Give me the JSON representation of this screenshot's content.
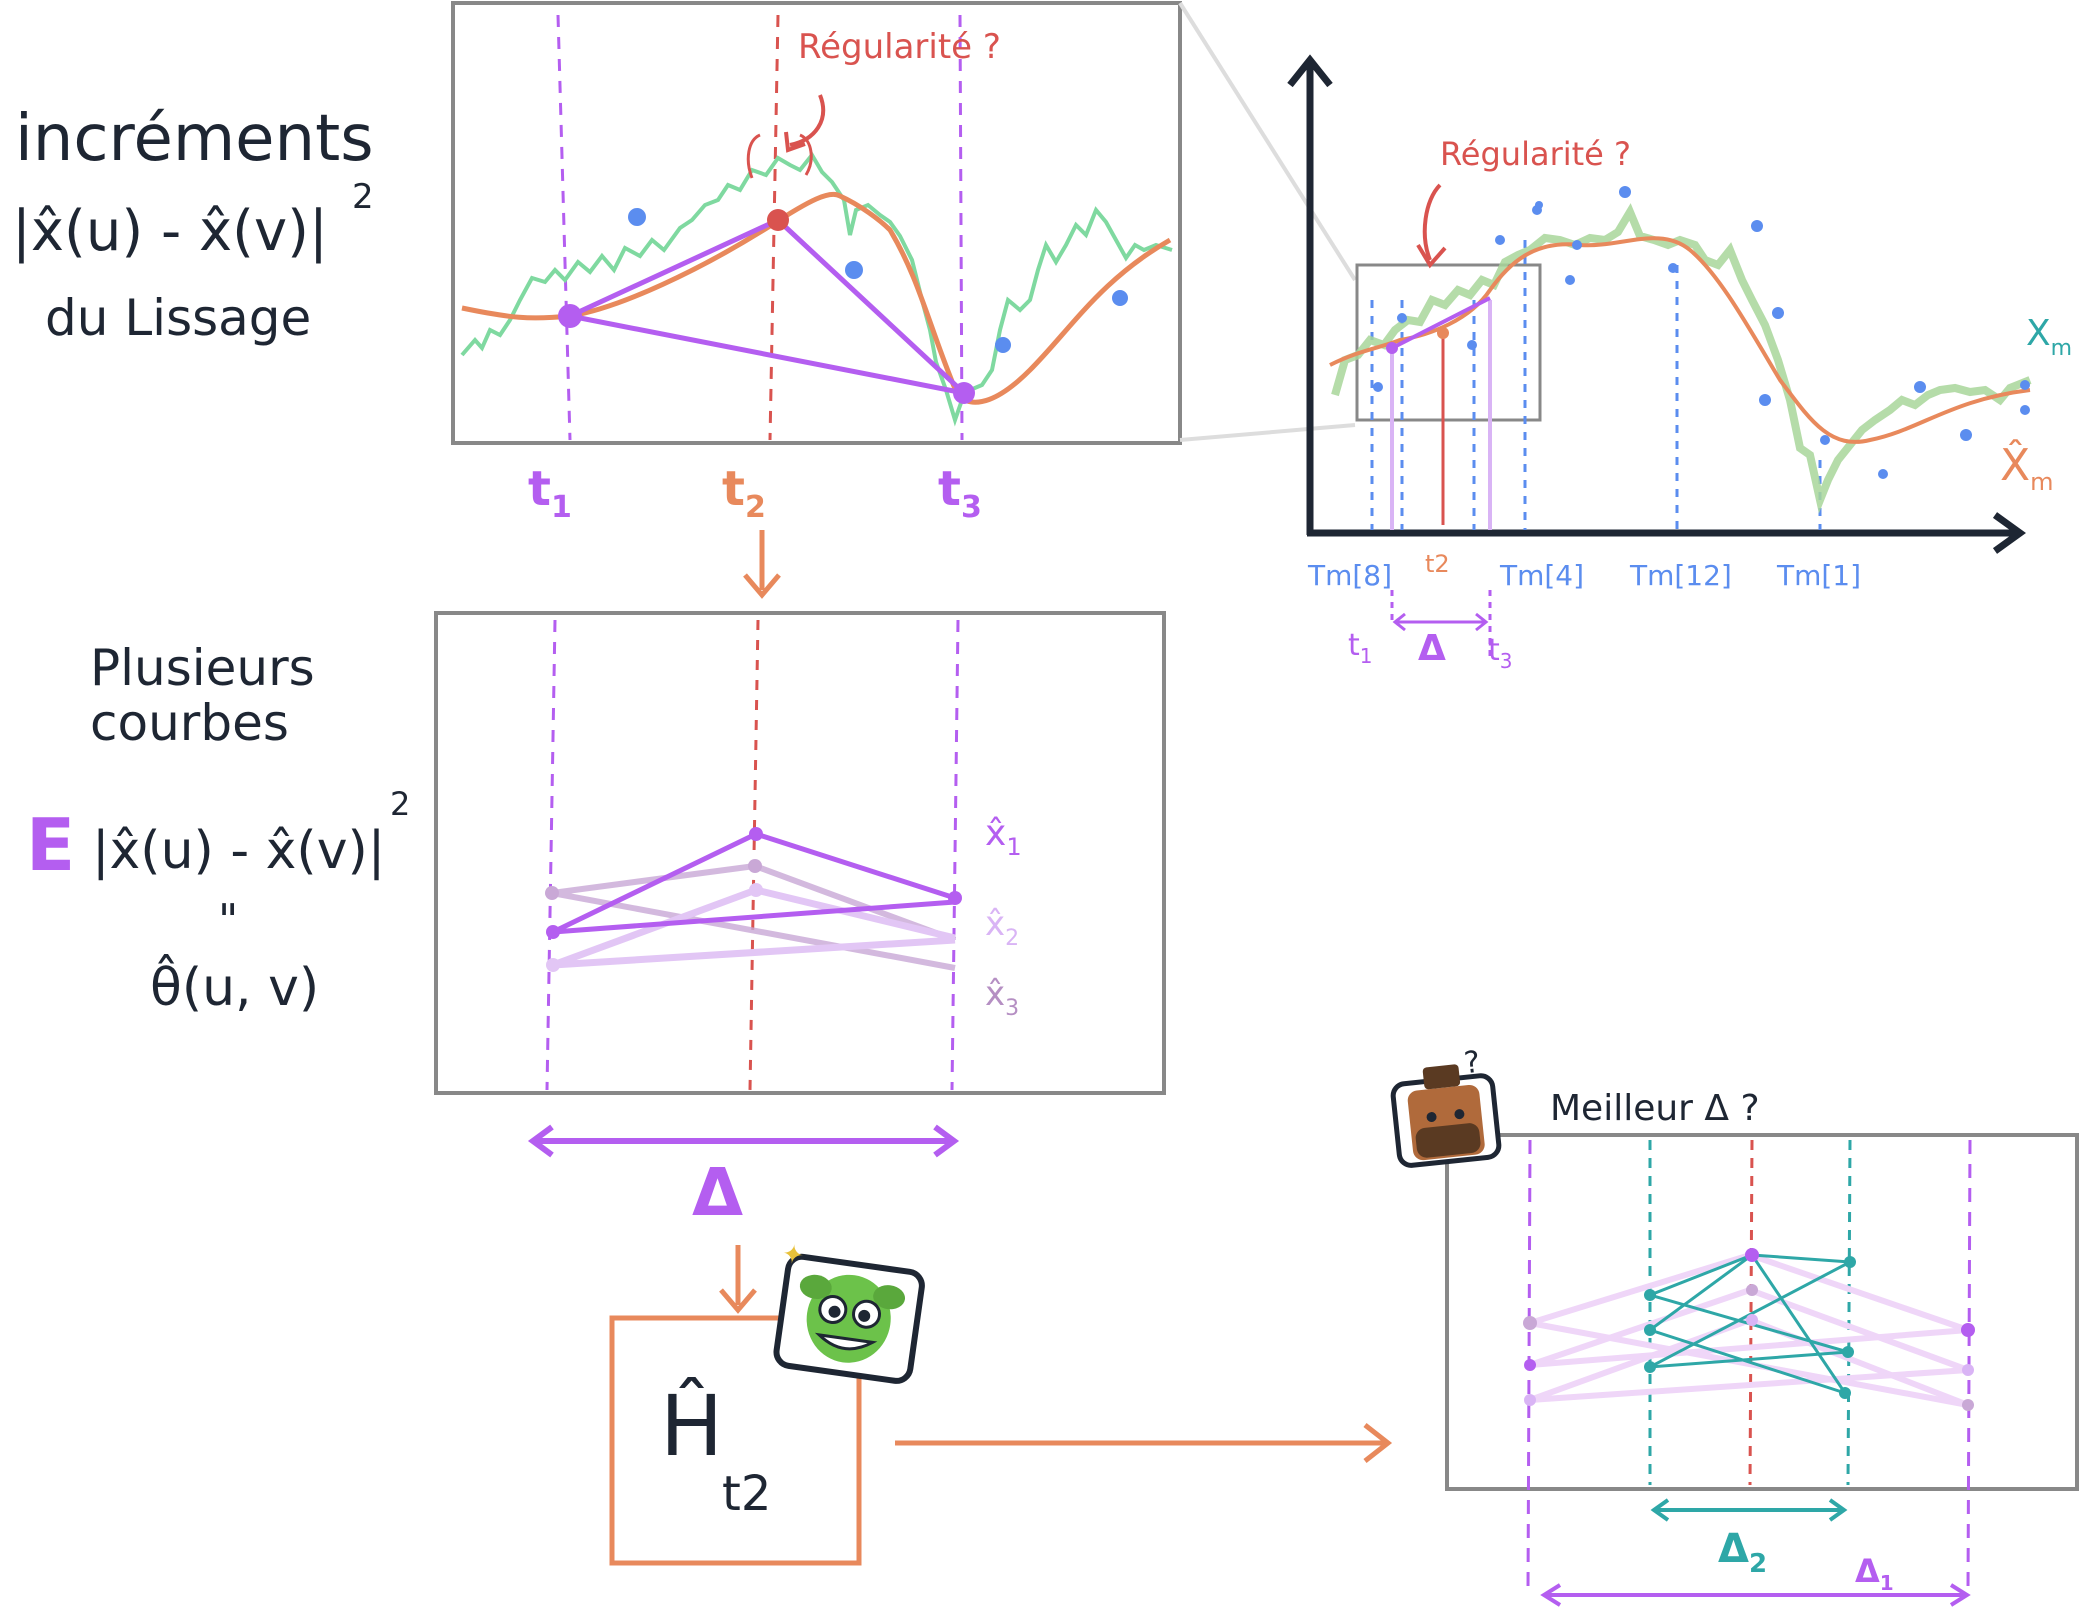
{
  "colors": {
    "purple": "#b45ef0",
    "purple_light": "#d9b4f5",
    "orange": "#e8895c",
    "red": "#d9534f",
    "green": "#7fd9a0",
    "green_dark": "#8cc97a",
    "blue": "#5b8def",
    "teal": "#2ea7a7",
    "ink": "#1e2633",
    "frame": "#888888"
  },
  "left_notes": {
    "top_line1": "incréments",
    "top_formula": "|x̂(u) - x̂(v)|",
    "top_exp": "2",
    "top_line3": "du  Lissage",
    "mid_line1": "Plusieurs",
    "mid_line2": "courbes",
    "mid_E": "E",
    "mid_formula": "|x̂(u) - x̂(v)|",
    "mid_exp": "2",
    "mid_eq": "\"",
    "mid_theta": "θ̂(u, v)"
  },
  "top_panel": {
    "annotation": "Régularité ?",
    "t1": "t",
    "t1_sub": "1",
    "t2": "t",
    "t2_sub": "2",
    "t3": "t",
    "t3_sub": "3"
  },
  "main_plot": {
    "annotation": "Régularité ?",
    "x_series": "X",
    "x_series_sub": "m",
    "xhat_series": "X̂",
    "xhat_series_sub": "m",
    "ticks": [
      "Tm[8]",
      "t2",
      "Tm[4]",
      "Tm[12]",
      "Tm[1]"
    ],
    "below_t1": "t",
    "below_t1_sub": "1",
    "below_delta": "Δ",
    "below_t3": "t",
    "below_t3_sub": "3"
  },
  "mid_panel": {
    "curve1": "x̂",
    "curve1_sub": "1",
    "curve2": "x̂",
    "curve2_sub": "2",
    "curve3": "x̂",
    "curve3_sub": "3",
    "delta": "Δ"
  },
  "h_box": {
    "H": "Ĥ",
    "sub": "t2"
  },
  "right_panel": {
    "title": "Meilleur  Δ  ?",
    "delta2": "Δ",
    "delta2_sub": "2",
    "delta1": "Δ",
    "delta1_sub": "1"
  }
}
